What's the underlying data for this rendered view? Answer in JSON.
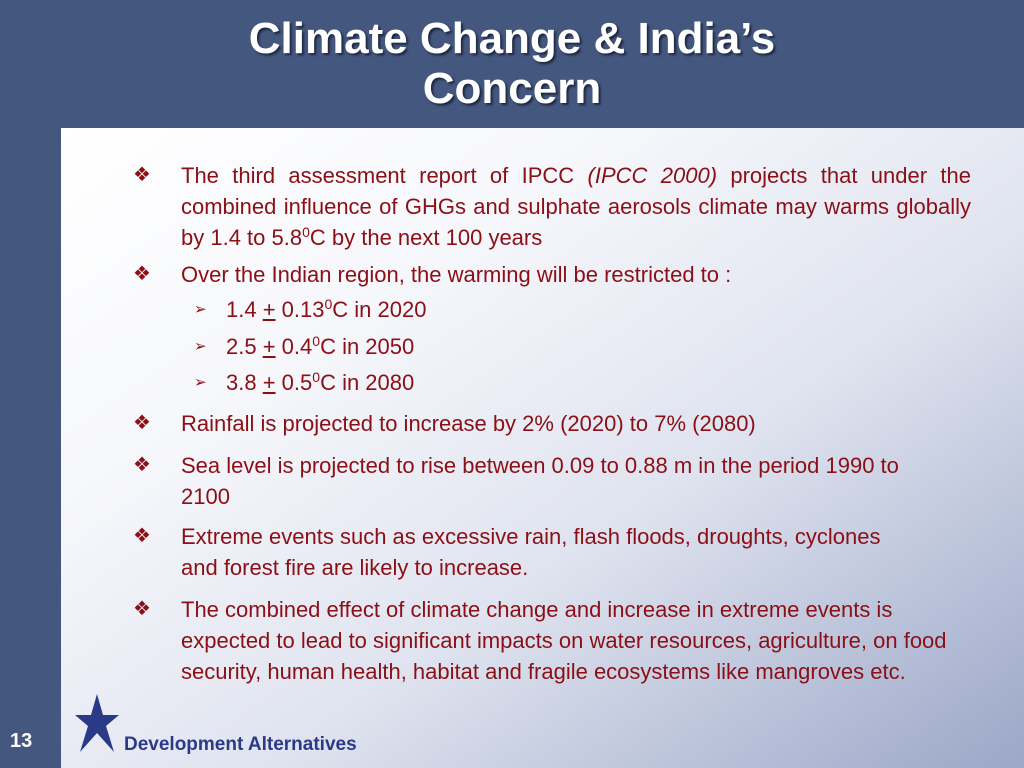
{
  "slide": {
    "title_line1": "Climate Change & India’s",
    "title_line2": "Concern",
    "page_number": "13",
    "brand": "Development Alternatives",
    "colors": {
      "background": "#44577f",
      "text": "#8b0f16",
      "brand": "#2a3a86"
    },
    "bullet_icon": "four-diamond-icon",
    "sub_bullet_icon": "arrowhead-icon",
    "logo_icon": "star-logo-icon"
  },
  "bullets": {
    "b1": {
      "text_a": "The third assessment report of IPCC ",
      "text_italic": "(IPCC 2000)",
      "text_b": " projects that under the combined influence of GHGs and sulphate aerosols climate may warms globally by 1.4 to 5.8",
      "sup": "0",
      "text_c": "C by the next 100 years"
    },
    "b2": {
      "text": "Over the Indian region, the warming will be restricted to :"
    },
    "s1": {
      "a": "1.4 ",
      "pm": "+",
      "b": " 0.13",
      "sup": "0",
      "c": "C in 2020"
    },
    "s2": {
      "a": "2.5 ",
      "pm": "+",
      "b": " 0.4",
      "sup": "0",
      "c": "C in 2050"
    },
    "s3": {
      "a": "3.8 ",
      "pm": "+",
      "b": " 0.5",
      "sup": "0",
      "c": "C in 2080"
    },
    "b3": {
      "text": "Rainfall is projected to increase by 2% (2020) to 7% (2080)"
    },
    "b4": {
      "text": "Sea level is projected to rise between 0.09 to 0.88 m in the period 1990 to 2100"
    },
    "b5": {
      "text": "Extreme events such as excessive rain, flash floods, droughts, cyclones and forest fire are likely to increase."
    },
    "b6": {
      "text": "The combined effect of climate change and increase in extreme events is expected to lead to significant impacts on water resources, agriculture, on food security, human health, habitat and fragile ecosystems like mangroves etc."
    }
  }
}
